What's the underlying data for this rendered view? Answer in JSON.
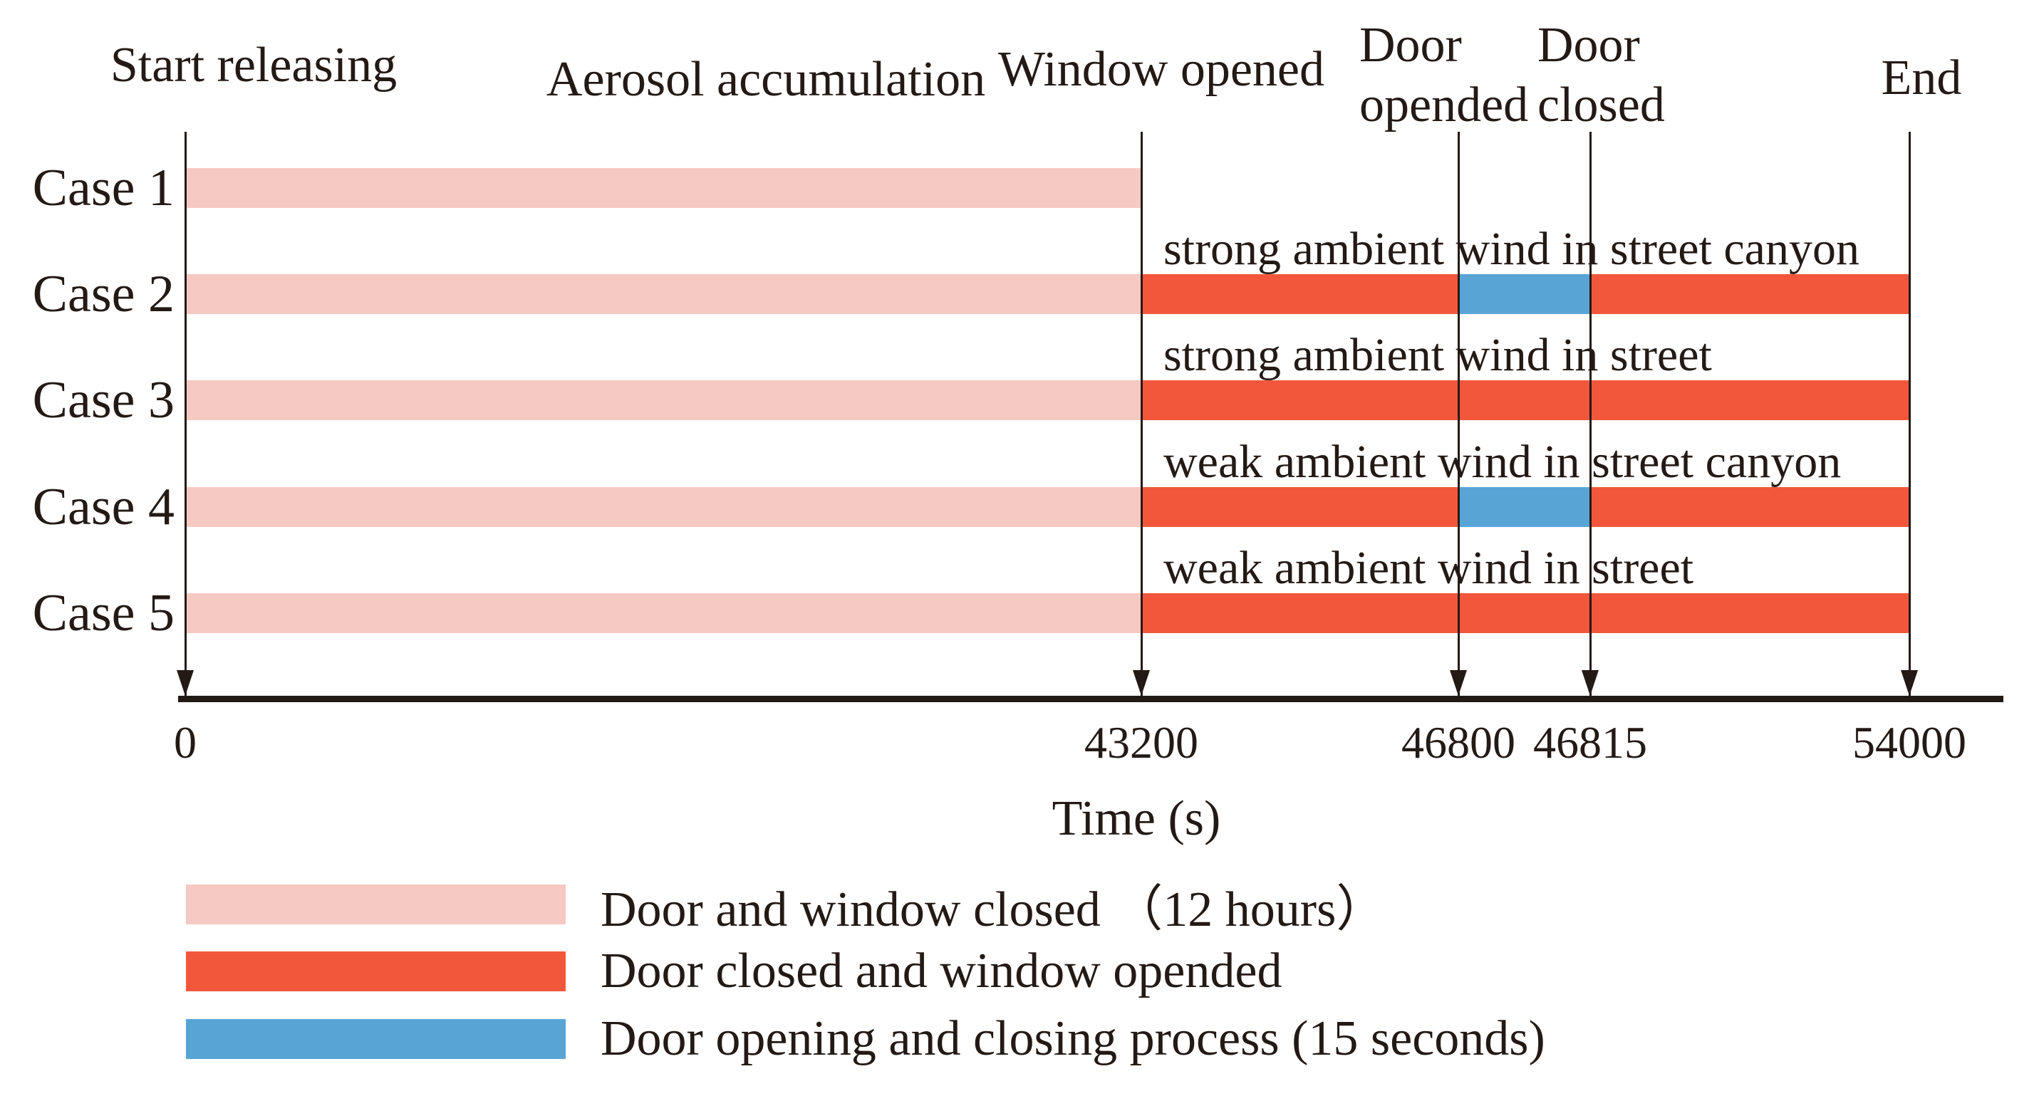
{
  "chart_data": {
    "type": "bar",
    "subtype": "gantt_timeline",
    "title": "",
    "xlabel": "Time (s)",
    "x_ticks": [
      "0",
      "43200",
      "46800",
      "46815",
      "54000"
    ],
    "axis_note": "horizontal axis is schematic, not to linear scale",
    "grid": false,
    "legend_position": "bottom-left",
    "phase_label": "Aerosol accumulation",
    "events": [
      {
        "id": "start",
        "time": "0",
        "label_lines": [
          "Start releasing"
        ]
      },
      {
        "id": "window_opened",
        "time": "43200",
        "label_lines": [
          "Window opened"
        ]
      },
      {
        "id": "door_opened",
        "time": "46800",
        "label_lines": [
          "Door",
          "opended"
        ]
      },
      {
        "id": "door_closed",
        "time": "46815",
        "label_lines": [
          "Door",
          "closed"
        ]
      },
      {
        "id": "end",
        "time": "54000",
        "label_lines": [
          "End"
        ]
      }
    ],
    "colors": {
      "door_window_closed": "#f6c9c3",
      "window_opened": "#f2573c",
      "door_process": "#58a4d5",
      "ink": "#241a15"
    },
    "cases": [
      {
        "name": "Case 1",
        "annotation": "",
        "segments": [
          {
            "phase": "door_window_closed",
            "from": "0",
            "to": "43200"
          }
        ]
      },
      {
        "name": "Case 2",
        "annotation": "strong ambient wind in street canyon",
        "segments": [
          {
            "phase": "door_window_closed",
            "from": "0",
            "to": "43200"
          },
          {
            "phase": "window_opened",
            "from": "43200",
            "to": "46800"
          },
          {
            "phase": "door_process",
            "from": "46800",
            "to": "46815"
          },
          {
            "phase": "window_opened",
            "from": "46815",
            "to": "54000"
          }
        ]
      },
      {
        "name": "Case 3",
        "annotation": "strong ambient wind in street",
        "segments": [
          {
            "phase": "door_window_closed",
            "from": "0",
            "to": "43200"
          },
          {
            "phase": "window_opened",
            "from": "43200",
            "to": "54000"
          }
        ]
      },
      {
        "name": "Case 4",
        "annotation": "weak ambient wind in street canyon",
        "segments": [
          {
            "phase": "door_window_closed",
            "from": "0",
            "to": "43200"
          },
          {
            "phase": "window_opened",
            "from": "43200",
            "to": "46800"
          },
          {
            "phase": "door_process",
            "from": "46800",
            "to": "46815"
          },
          {
            "phase": "window_opened",
            "from": "46815",
            "to": "54000"
          }
        ]
      },
      {
        "name": "Case 5",
        "annotation": "weak ambient wind in street",
        "segments": [
          {
            "phase": "door_window_closed",
            "from": "0",
            "to": "43200"
          },
          {
            "phase": "window_opened",
            "from": "43200",
            "to": "54000"
          }
        ]
      }
    ],
    "legend": [
      {
        "phase": "door_window_closed",
        "label": "Door and window closed （12 hours）"
      },
      {
        "phase": "window_opened",
        "label": "Door closed and window opended"
      },
      {
        "phase": "door_process",
        "label": "Door opening and closing process (15 seconds)"
      }
    ]
  }
}
